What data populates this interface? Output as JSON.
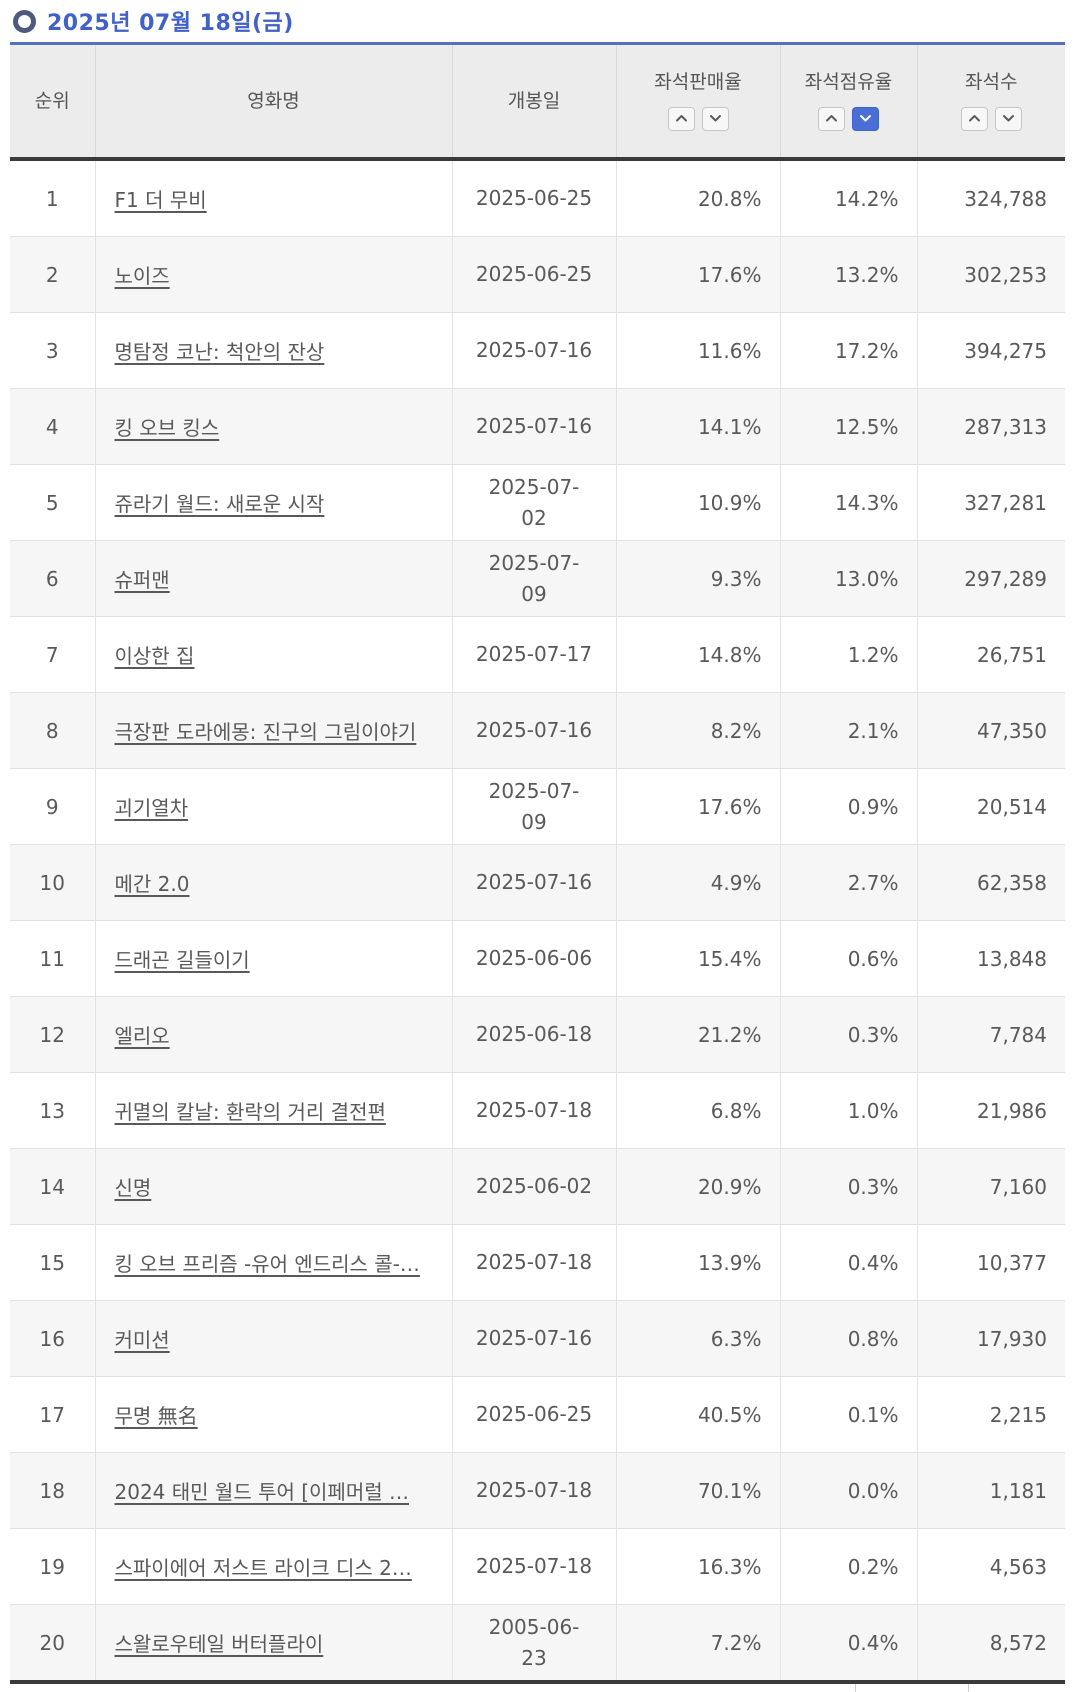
{
  "page": {
    "title": "2025년 07월 18일(금)"
  },
  "colors": {
    "title_blue": "#4161c8",
    "table_top_line": "#5571bd",
    "active_sort_blue": "#4a6fd4",
    "header_bg": "#ececec",
    "dark_divider": "#3a3a3a",
    "row_alt_bg": "#f6f6f6",
    "text_gray": "#595959"
  },
  "table": {
    "columns": [
      {
        "key": "rank",
        "label": "순위",
        "sortable": false,
        "active_sort": null
      },
      {
        "key": "title",
        "label": "영화명",
        "sortable": false,
        "active_sort": null
      },
      {
        "key": "release",
        "label": "개봉일",
        "sortable": false,
        "active_sort": null
      },
      {
        "key": "sales",
        "label": "좌석판매율",
        "sortable": true,
        "active_sort": null
      },
      {
        "key": "share",
        "label": "좌석점유율",
        "sortable": true,
        "active_sort": "desc"
      },
      {
        "key": "seats",
        "label": "좌석수",
        "sortable": true,
        "active_sort": null
      }
    ],
    "rows": [
      {
        "rank": "1",
        "title": "F1 더 무비",
        "release": "2025-06-25",
        "sales": "20.8%",
        "share": "14.2%",
        "seats": "324,788"
      },
      {
        "rank": "2",
        "title": "노이즈",
        "release": "2025-06-25",
        "sales": "17.6%",
        "share": "13.2%",
        "seats": "302,253"
      },
      {
        "rank": "3",
        "title": "명탐정 코난: 척안의 잔상",
        "release": "2025-07-16",
        "sales": "11.6%",
        "share": "17.2%",
        "seats": "394,275"
      },
      {
        "rank": "4",
        "title": "킹 오브 킹스",
        "release": "2025-07-16",
        "sales": "14.1%",
        "share": "12.5%",
        "seats": "287,313"
      },
      {
        "rank": "5",
        "title": "쥬라기 월드: 새로운 시작",
        "release": "2025-07-\n02",
        "sales": "10.9%",
        "share": "14.3%",
        "seats": "327,281"
      },
      {
        "rank": "6",
        "title": "슈퍼맨",
        "release": "2025-07-\n09",
        "sales": "9.3%",
        "share": "13.0%",
        "seats": "297,289"
      },
      {
        "rank": "7",
        "title": "이상한 집",
        "release": "2025-07-17",
        "sales": "14.8%",
        "share": "1.2%",
        "seats": "26,751"
      },
      {
        "rank": "8",
        "title": "극장판 도라에몽: 진구의 그림이야기",
        "release": "2025-07-16",
        "sales": "8.2%",
        "share": "2.1%",
        "seats": "47,350"
      },
      {
        "rank": "9",
        "title": "괴기열차",
        "release": "2025-07-\n09",
        "sales": "17.6%",
        "share": "0.9%",
        "seats": "20,514"
      },
      {
        "rank": "10",
        "title": "메간 2.0",
        "release": "2025-07-16",
        "sales": "4.9%",
        "share": "2.7%",
        "seats": "62,358"
      },
      {
        "rank": "11",
        "title": "드래곤 길들이기",
        "release": "2025-06-06",
        "sales": "15.4%",
        "share": "0.6%",
        "seats": "13,848"
      },
      {
        "rank": "12",
        "title": "엘리오",
        "release": "2025-06-18",
        "sales": "21.2%",
        "share": "0.3%",
        "seats": "7,784"
      },
      {
        "rank": "13",
        "title": "귀멸의 칼날: 환락의 거리 결전편",
        "release": "2025-07-18",
        "sales": "6.8%",
        "share": "1.0%",
        "seats": "21,986"
      },
      {
        "rank": "14",
        "title": "신명",
        "release": "2025-06-02",
        "sales": "20.9%",
        "share": "0.3%",
        "seats": "7,160"
      },
      {
        "rank": "15",
        "title": "킹 오브 프리즘 -유어 엔드리스 콜-…",
        "release": "2025-07-18",
        "sales": "13.9%",
        "share": "0.4%",
        "seats": "10,377"
      },
      {
        "rank": "16",
        "title": "커미션",
        "release": "2025-07-16",
        "sales": "6.3%",
        "share": "0.8%",
        "seats": "17,930"
      },
      {
        "rank": "17",
        "title": "무명 無名",
        "release": "2025-06-25",
        "sales": "40.5%",
        "share": "0.1%",
        "seats": "2,215"
      },
      {
        "rank": "18",
        "title": "2024 태민 월드 투어 [이페머럴 …",
        "release": "2025-07-18",
        "sales": "70.1%",
        "share": "0.0%",
        "seats": "1,181"
      },
      {
        "rank": "19",
        "title": "스파이에어 저스트 라이크 디스 2…",
        "release": "2025-07-18",
        "sales": "16.3%",
        "share": "0.2%",
        "seats": "4,563"
      },
      {
        "rank": "20",
        "title": "스왈로우테일 버터플라이",
        "release": "2005-06-\n23",
        "sales": "7.2%",
        "share": "0.4%",
        "seats": "8,572"
      }
    ]
  }
}
